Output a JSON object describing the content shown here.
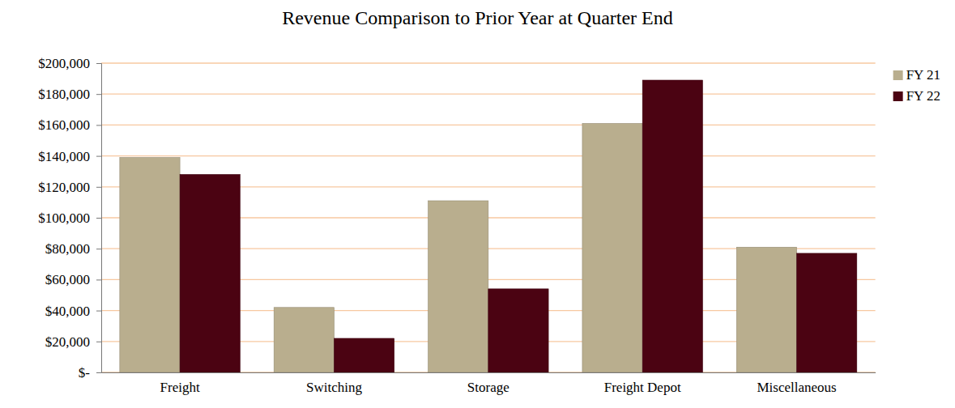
{
  "chart_data": {
    "type": "bar",
    "title": "Revenue Comparison to Prior Year at Quarter End",
    "categories": [
      "Freight",
      "Switching",
      "Storage",
      "Freight Depot",
      "Miscellaneous"
    ],
    "series": [
      {
        "name": "FY 21",
        "color": "#b9ae8e",
        "values": [
          139000,
          42000,
          111000,
          161000,
          81000
        ]
      },
      {
        "name": "FY 22",
        "color": "#4b0312",
        "values": [
          128000,
          22000,
          54000,
          189000,
          77000
        ]
      }
    ],
    "ylim": [
      0,
      200000
    ],
    "yticks": [
      {
        "value": 0,
        "label": "$-"
      },
      {
        "value": 20000,
        "label": "$20,000"
      },
      {
        "value": 40000,
        "label": "$40,000"
      },
      {
        "value": 60000,
        "label": "$60,000"
      },
      {
        "value": 80000,
        "label": "$80,000"
      },
      {
        "value": 100000,
        "label": "$100,000"
      },
      {
        "value": 120000,
        "label": "$120,000"
      },
      {
        "value": 140000,
        "label": "$140,000"
      },
      {
        "value": 160000,
        "label": "$160,000"
      },
      {
        "value": 180000,
        "label": "$180,000"
      },
      {
        "value": 200000,
        "label": "$200,000"
      }
    ],
    "grid": true,
    "legend": "top-right"
  }
}
